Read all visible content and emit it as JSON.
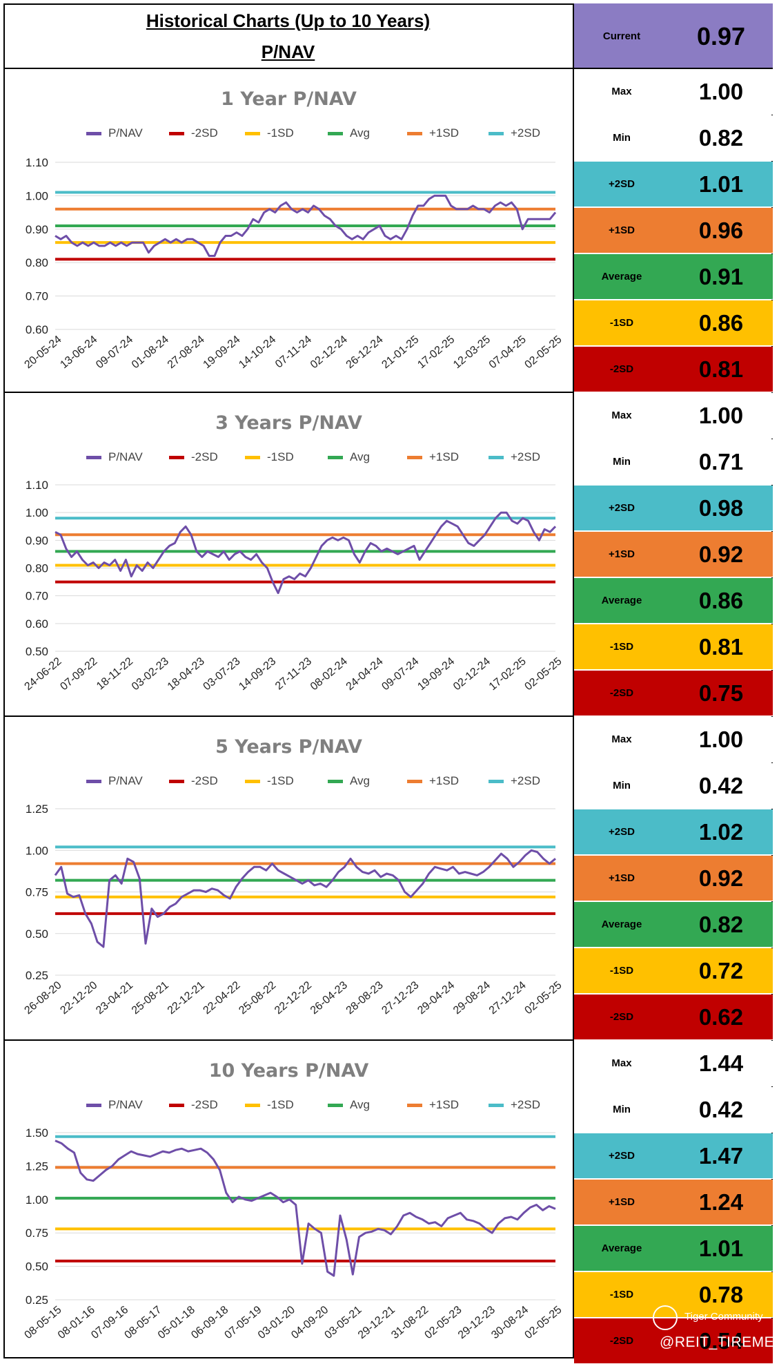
{
  "header": {
    "title": "Historical Charts (Up to 10 Years)",
    "subtitle": "P/NAV",
    "current_label": "Current",
    "current_value": "0.97"
  },
  "legend": [
    "P/NAV",
    "-2SD",
    "-1SD",
    "Avg",
    "+1SD",
    "+2SD"
  ],
  "colors": {
    "pnav": "#6e4ea8",
    "m2sd": "#c00000",
    "m1sd": "#ffc000",
    "avg": "#33a853",
    "p1sd": "#ed7d31",
    "p2sd": "#4bbcc8",
    "current_bg": "#8b7cc3",
    "grid": "#d9d9d9"
  },
  "panels": [
    {
      "title": "1 Year P/NAV",
      "stats": [
        {
          "label": "Max",
          "value": "1.00"
        },
        {
          "label": "Min",
          "value": "0.82"
        },
        {
          "label": "+2SD",
          "value": "1.01"
        },
        {
          "label": "+1SD",
          "value": "0.96"
        },
        {
          "label": "Average",
          "value": "0.91"
        },
        {
          "label": "-1SD",
          "value": "0.86"
        },
        {
          "label": "-2SD",
          "value": "0.81"
        }
      ]
    },
    {
      "title": "3 Years P/NAV",
      "stats": [
        {
          "label": "Max",
          "value": "1.00"
        },
        {
          "label": "Min",
          "value": "0.71"
        },
        {
          "label": "+2SD",
          "value": "0.98"
        },
        {
          "label": "+1SD",
          "value": "0.92"
        },
        {
          "label": "Average",
          "value": "0.86"
        },
        {
          "label": "-1SD",
          "value": "0.81"
        },
        {
          "label": "-2SD",
          "value": "0.75"
        }
      ]
    },
    {
      "title": "5 Years P/NAV",
      "stats": [
        {
          "label": "Max",
          "value": "1.00"
        },
        {
          "label": "Min",
          "value": "0.42"
        },
        {
          "label": "+2SD",
          "value": "1.02"
        },
        {
          "label": "+1SD",
          "value": "0.92"
        },
        {
          "label": "Average",
          "value": "0.82"
        },
        {
          "label": "-1SD",
          "value": "0.72"
        },
        {
          "label": "-2SD",
          "value": "0.62"
        }
      ]
    },
    {
      "title": "10 Years P/NAV",
      "stats": [
        {
          "label": "Max",
          "value": "1.44"
        },
        {
          "label": "Min",
          "value": "0.42"
        },
        {
          "label": "+2SD",
          "value": "1.47"
        },
        {
          "label": "+1SD",
          "value": "1.24"
        },
        {
          "label": "Average",
          "value": "1.01"
        },
        {
          "label": "-1SD",
          "value": "0.78"
        },
        {
          "label": "-2SD",
          "value": "0.54"
        }
      ]
    }
  ],
  "watermark": {
    "brand": "Tiger Community",
    "handle": "@REIT_TIREMENT"
  },
  "chart_data": [
    {
      "type": "line",
      "title": "1 Year P/NAV",
      "ylim": [
        0.6,
        1.1
      ],
      "yticks": [
        "0.60",
        "0.70",
        "0.80",
        "0.90",
        "1.00",
        "1.10"
      ],
      "xticks": [
        "20-05-24",
        "13-06-24",
        "09-07-24",
        "01-08-24",
        "27-08-24",
        "19-09-24",
        "14-10-24",
        "07-11-24",
        "02-12-24",
        "26-12-24",
        "21-01-25",
        "17-02-25",
        "12-03-25",
        "07-04-25",
        "02-05-25"
      ],
      "bands": {
        "-2SD": 0.81,
        "-1SD": 0.86,
        "Avg": 0.91,
        "+1SD": 0.96,
        "+2SD": 1.01
      },
      "series": [
        {
          "name": "P/NAV",
          "values": [
            0.88,
            0.87,
            0.88,
            0.86,
            0.85,
            0.86,
            0.85,
            0.86,
            0.85,
            0.85,
            0.86,
            0.85,
            0.86,
            0.85,
            0.86,
            0.86,
            0.86,
            0.83,
            0.85,
            0.86,
            0.87,
            0.86,
            0.87,
            0.86,
            0.87,
            0.87,
            0.86,
            0.85,
            0.82,
            0.82,
            0.86,
            0.88,
            0.88,
            0.89,
            0.88,
            0.9,
            0.93,
            0.92,
            0.95,
            0.96,
            0.95,
            0.97,
            0.98,
            0.96,
            0.95,
            0.96,
            0.95,
            0.97,
            0.96,
            0.94,
            0.93,
            0.91,
            0.9,
            0.88,
            0.87,
            0.88,
            0.87,
            0.89,
            0.9,
            0.91,
            0.88,
            0.87,
            0.88,
            0.87,
            0.9,
            0.94,
            0.97,
            0.97,
            0.99,
            1.0,
            1.0,
            1.0,
            0.97,
            0.96,
            0.96,
            0.96,
            0.97,
            0.96,
            0.96,
            0.95,
            0.97,
            0.98,
            0.97,
            0.98,
            0.96,
            0.9,
            0.93,
            0.93,
            0.93,
            0.93,
            0.93,
            0.95
          ]
        }
      ]
    },
    {
      "type": "line",
      "title": "3 Years P/NAV",
      "ylim": [
        0.5,
        1.1
      ],
      "yticks": [
        "0.50",
        "0.60",
        "0.70",
        "0.80",
        "0.90",
        "1.00",
        "1.10"
      ],
      "xticks": [
        "24-06-22",
        "07-09-22",
        "18-11-22",
        "03-02-23",
        "18-04-23",
        "03-07-23",
        "14-09-23",
        "27-11-23",
        "08-02-24",
        "24-04-24",
        "09-07-24",
        "19-09-24",
        "02-12-24",
        "17-02-25",
        "02-05-25"
      ],
      "bands": {
        "-2SD": 0.75,
        "-1SD": 0.81,
        "Avg": 0.86,
        "+1SD": 0.92,
        "+2SD": 0.98
      },
      "series": [
        {
          "name": "P/NAV",
          "values": [
            0.93,
            0.92,
            0.87,
            0.84,
            0.86,
            0.83,
            0.81,
            0.82,
            0.8,
            0.82,
            0.81,
            0.83,
            0.79,
            0.83,
            0.77,
            0.81,
            0.79,
            0.82,
            0.8,
            0.83,
            0.86,
            0.88,
            0.89,
            0.93,
            0.95,
            0.92,
            0.86,
            0.84,
            0.86,
            0.85,
            0.84,
            0.86,
            0.83,
            0.85,
            0.86,
            0.84,
            0.83,
            0.85,
            0.82,
            0.8,
            0.75,
            0.71,
            0.76,
            0.77,
            0.76,
            0.78,
            0.77,
            0.8,
            0.84,
            0.88,
            0.9,
            0.91,
            0.9,
            0.91,
            0.9,
            0.85,
            0.82,
            0.86,
            0.89,
            0.88,
            0.86,
            0.87,
            0.86,
            0.85,
            0.86,
            0.87,
            0.88,
            0.83,
            0.86,
            0.89,
            0.92,
            0.95,
            0.97,
            0.96,
            0.95,
            0.92,
            0.89,
            0.88,
            0.9,
            0.92,
            0.95,
            0.98,
            1.0,
            1.0,
            0.97,
            0.96,
            0.98,
            0.97,
            0.93,
            0.9,
            0.94,
            0.93,
            0.95
          ]
        }
      ]
    },
    {
      "type": "line",
      "title": "5 Years P/NAV",
      "ylim": [
        0.25,
        1.25
      ],
      "yticks": [
        "0.25",
        "0.50",
        "0.75",
        "1.00",
        "1.25"
      ],
      "xticks": [
        "26-08-20",
        "22-12-20",
        "23-04-21",
        "25-08-21",
        "22-12-21",
        "22-04-22",
        "25-08-22",
        "22-12-22",
        "26-04-23",
        "28-08-23",
        "27-12-23",
        "29-04-24",
        "29-08-24",
        "27-12-24",
        "02-05-25"
      ],
      "bands": {
        "-2SD": 0.62,
        "-1SD": 0.72,
        "Avg": 0.82,
        "+1SD": 0.92,
        "+2SD": 1.02
      },
      "series": [
        {
          "name": "P/NAV",
          "values": [
            0.85,
            0.9,
            0.74,
            0.72,
            0.73,
            0.62,
            0.56,
            0.45,
            0.42,
            0.82,
            0.85,
            0.8,
            0.95,
            0.93,
            0.83,
            0.44,
            0.65,
            0.6,
            0.62,
            0.66,
            0.68,
            0.72,
            0.74,
            0.76,
            0.76,
            0.75,
            0.77,
            0.76,
            0.73,
            0.71,
            0.78,
            0.83,
            0.87,
            0.9,
            0.9,
            0.88,
            0.92,
            0.88,
            0.86,
            0.84,
            0.82,
            0.8,
            0.82,
            0.79,
            0.8,
            0.78,
            0.82,
            0.87,
            0.9,
            0.95,
            0.9,
            0.87,
            0.86,
            0.88,
            0.84,
            0.86,
            0.85,
            0.82,
            0.75,
            0.72,
            0.76,
            0.8,
            0.86,
            0.9,
            0.89,
            0.88,
            0.9,
            0.86,
            0.87,
            0.86,
            0.85,
            0.87,
            0.9,
            0.94,
            0.98,
            0.95,
            0.9,
            0.93,
            0.97,
            1.0,
            0.99,
            0.95,
            0.92,
            0.95
          ]
        }
      ]
    },
    {
      "type": "line",
      "title": "10 Years P/NAV",
      "ylim": [
        0.25,
        1.5
      ],
      "yticks": [
        "0.25",
        "0.50",
        "0.75",
        "1.00",
        "1.25",
        "1.50"
      ],
      "xticks": [
        "08-05-15",
        "08-01-16",
        "07-09-16",
        "08-05-17",
        "05-01-18",
        "06-09-18",
        "07-05-19",
        "03-01-20",
        "04-09-20",
        "03-05-21",
        "29-12-21",
        "31-08-22",
        "02-05-23",
        "29-12-23",
        "30-08-24",
        "02-05-25"
      ],
      "bands": {
        "-2SD": 0.54,
        "-1SD": 0.78,
        "Avg": 1.01,
        "+1SD": 1.24,
        "+2SD": 1.47
      },
      "series": [
        {
          "name": "P/NAV",
          "values": [
            1.44,
            1.42,
            1.38,
            1.35,
            1.2,
            1.15,
            1.14,
            1.18,
            1.22,
            1.25,
            1.3,
            1.33,
            1.36,
            1.34,
            1.33,
            1.32,
            1.34,
            1.36,
            1.35,
            1.37,
            1.38,
            1.36,
            1.37,
            1.38,
            1.35,
            1.3,
            1.22,
            1.05,
            0.98,
            1.02,
            1.0,
            0.99,
            1.01,
            1.03,
            1.05,
            1.02,
            0.98,
            1.0,
            0.96,
            0.52,
            0.82,
            0.78,
            0.75,
            0.46,
            0.43,
            0.88,
            0.7,
            0.44,
            0.72,
            0.75,
            0.76,
            0.78,
            0.77,
            0.74,
            0.8,
            0.88,
            0.9,
            0.87,
            0.85,
            0.82,
            0.83,
            0.8,
            0.86,
            0.88,
            0.9,
            0.85,
            0.84,
            0.82,
            0.78,
            0.75,
            0.82,
            0.86,
            0.87,
            0.85,
            0.9,
            0.94,
            0.96,
            0.92,
            0.95,
            0.93
          ]
        }
      ]
    }
  ]
}
